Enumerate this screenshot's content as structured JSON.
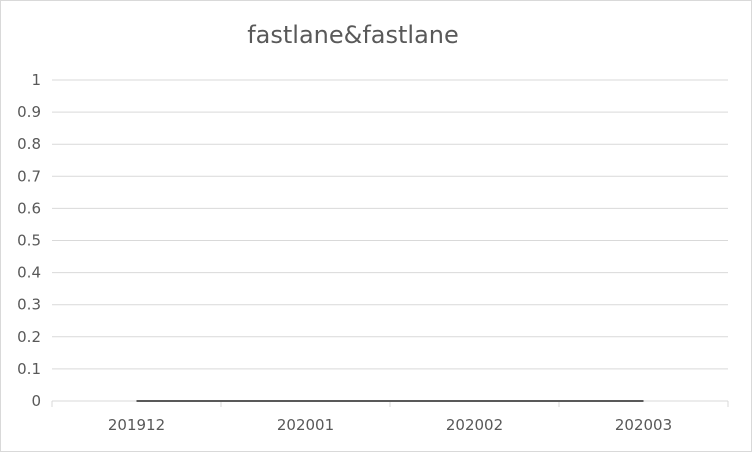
{
  "chart_data": {
    "type": "line",
    "title": "fastlane&fastlane",
    "xlabel": "",
    "ylabel": "",
    "categories": [
      "201912",
      "202001",
      "202002",
      "202003"
    ],
    "series": [
      {
        "values": [
          0,
          0,
          0,
          0
        ],
        "color": "#595959"
      }
    ],
    "ylim": [
      0,
      1
    ],
    "yticks": [
      "0",
      "0.1",
      "0.2",
      "0.3",
      "0.4",
      "0.5",
      "0.6",
      "0.7",
      "0.8",
      "0.9",
      "1"
    ],
    "grid": true,
    "legend": "none",
    "colors": {
      "grid": "#d9d9d9",
      "text": "#595959",
      "border": "#d9d9d9"
    }
  }
}
